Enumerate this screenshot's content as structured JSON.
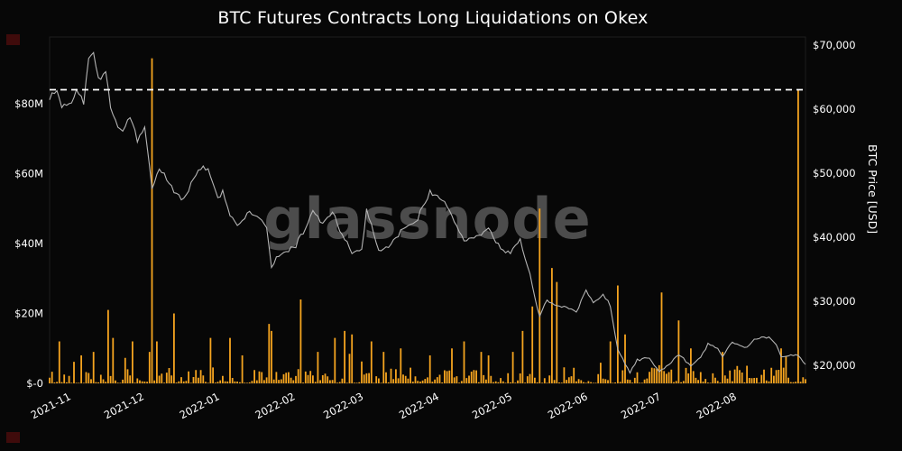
{
  "watermark": "glassnode",
  "chart_data": {
    "type": "mixed",
    "title": "BTC Futures Contracts Long Liquidations on Okex",
    "background": "#070707",
    "legend": "none",
    "grid": false,
    "x_range": [
      "2021-10-23",
      "2022-08-29"
    ],
    "series": [
      {
        "name": "Long Liquidations",
        "type": "bar",
        "axis": "left",
        "unit": "USD (millions)",
        "color": "#f5a41f"
      },
      {
        "name": "BTC Price",
        "type": "line",
        "axis": "right",
        "unit": "USD",
        "color": "#b4b4b4"
      }
    ],
    "left_axis": {
      "title": "",
      "range_m": [
        0,
        98
      ],
      "ticks": [
        {
          "label": "$80M",
          "value": 80
        },
        {
          "label": "$60M",
          "value": 60
        },
        {
          "label": "$40M",
          "value": 40
        },
        {
          "label": "$20M",
          "value": 20
        },
        {
          "label": "$-0",
          "value": 0
        }
      ]
    },
    "right_axis": {
      "title": "BTC Price [USD]",
      "range_usd": [
        17000,
        70500
      ],
      "ticks": [
        {
          "label": "$70,000",
          "value": 70000
        },
        {
          "label": "$60,000",
          "value": 60000
        },
        {
          "label": "$50,000",
          "value": 50000
        },
        {
          "label": "$40,000",
          "value": 40000
        },
        {
          "label": "$30,000",
          "value": 30000
        },
        {
          "label": "$20,000",
          "value": 20000
        }
      ]
    },
    "x_ticks": [
      {
        "label": "2021-11",
        "date": "2021-11-01"
      },
      {
        "label": "2021-12",
        "date": "2021-12-01"
      },
      {
        "label": "2022-01",
        "date": "2022-01-01"
      },
      {
        "label": "2022-02",
        "date": "2022-02-01"
      },
      {
        "label": "2022-03",
        "date": "2022-03-01"
      },
      {
        "label": "2022-04",
        "date": "2022-04-01"
      },
      {
        "label": "2022-05",
        "date": "2022-05-01"
      },
      {
        "label": "2022-06",
        "date": "2022-06-01"
      },
      {
        "label": "2022-07",
        "date": "2022-07-01"
      },
      {
        "label": "2022-08",
        "date": "2022-08-01"
      }
    ],
    "annotation_line": {
      "description": "latest value dashed marker",
      "value_m": 84,
      "style": "dashed",
      "color": "#ffffff"
    },
    "price_anchors": [
      [
        "2021-10-23",
        61500
      ],
      [
        "2021-10-26",
        62900
      ],
      [
        "2021-10-28",
        60300
      ],
      [
        "2021-11-01",
        61300
      ],
      [
        "2021-11-03",
        63100
      ],
      [
        "2021-11-06",
        61400
      ],
      [
        "2021-11-08",
        67600
      ],
      [
        "2021-11-10",
        68800
      ],
      [
        "2021-11-12",
        64900
      ],
      [
        "2021-11-15",
        65900
      ],
      [
        "2021-11-17",
        60300
      ],
      [
        "2021-11-19",
        58100
      ],
      [
        "2021-11-22",
        56300
      ],
      [
        "2021-11-25",
        59000
      ],
      [
        "2021-11-28",
        54700
      ],
      [
        "2021-12-01",
        57200
      ],
      [
        "2021-12-04",
        47500
      ],
      [
        "2021-12-07",
        50700
      ],
      [
        "2021-12-11",
        48300
      ],
      [
        "2021-12-14",
        46700
      ],
      [
        "2021-12-17",
        46100
      ],
      [
        "2021-12-21",
        48900
      ],
      [
        "2021-12-24",
        50800
      ],
      [
        "2021-12-27",
        50700
      ],
      [
        "2021-12-31",
        46200
      ],
      [
        "2022-01-02",
        47300
      ],
      [
        "2022-01-05",
        43400
      ],
      [
        "2022-01-08",
        41700
      ],
      [
        "2022-01-13",
        43900
      ],
      [
        "2022-01-17",
        43100
      ],
      [
        "2022-01-20",
        41700
      ],
      [
        "2022-01-22",
        35100
      ],
      [
        "2022-01-24",
        36700
      ],
      [
        "2022-01-28",
        37800
      ],
      [
        "2022-02-01",
        38700
      ],
      [
        "2022-02-05",
        41500
      ],
      [
        "2022-02-08",
        44000
      ],
      [
        "2022-02-12",
        42200
      ],
      [
        "2022-02-16",
        43900
      ],
      [
        "2022-02-20",
        40100
      ],
      [
        "2022-02-24",
        37700
      ],
      [
        "2022-02-28",
        37900
      ],
      [
        "2022-03-02",
        44400
      ],
      [
        "2022-03-07",
        38000
      ],
      [
        "2022-03-12",
        38800
      ],
      [
        "2022-03-16",
        41100
      ],
      [
        "2022-03-22",
        42400
      ],
      [
        "2022-03-28",
        47100
      ],
      [
        "2022-04-02",
        45900
      ],
      [
        "2022-04-06",
        43200
      ],
      [
        "2022-04-11",
        39500
      ],
      [
        "2022-04-14",
        40000
      ],
      [
        "2022-04-18",
        40400
      ],
      [
        "2022-04-21",
        41400
      ],
      [
        "2022-04-26",
        38100
      ],
      [
        "2022-04-30",
        37700
      ],
      [
        "2022-05-04",
        39700
      ],
      [
        "2022-05-08",
        34100
      ],
      [
        "2022-05-11",
        28900
      ],
      [
        "2022-05-12",
        27600
      ],
      [
        "2022-05-15",
        30100
      ],
      [
        "2022-05-19",
        29200
      ],
      [
        "2022-05-23",
        29100
      ],
      [
        "2022-05-27",
        28600
      ],
      [
        "2022-05-31",
        31700
      ],
      [
        "2022-06-03",
        29700
      ],
      [
        "2022-06-07",
        31200
      ],
      [
        "2022-06-10",
        29100
      ],
      [
        "2022-06-13",
        22500
      ],
      [
        "2022-06-15",
        21100
      ],
      [
        "2022-06-18",
        18900
      ],
      [
        "2022-06-21",
        20700
      ],
      [
        "2022-06-26",
        21200
      ],
      [
        "2022-06-30",
        19000
      ],
      [
        "2022-07-04",
        20200
      ],
      [
        "2022-07-08",
        21600
      ],
      [
        "2022-07-13",
        19900
      ],
      [
        "2022-07-17",
        21200
      ],
      [
        "2022-07-20",
        23400
      ],
      [
        "2022-07-24",
        22600
      ],
      [
        "2022-07-26",
        21300
      ],
      [
        "2022-07-30",
        23800
      ],
      [
        "2022-08-04",
        22800
      ],
      [
        "2022-08-08",
        23900
      ],
      [
        "2022-08-11",
        24500
      ],
      [
        "2022-08-14",
        24300
      ],
      [
        "2022-08-17",
        23300
      ],
      [
        "2022-08-19",
        21300
      ],
      [
        "2022-08-23",
        21500
      ],
      [
        "2022-08-26",
        21600
      ],
      [
        "2022-08-29",
        20100
      ]
    ],
    "bar_spikes_m": [
      [
        "2021-10-27",
        12
      ],
      [
        "2021-11-05",
        8
      ],
      [
        "2021-11-10",
        9
      ],
      [
        "2021-11-16",
        21
      ],
      [
        "2021-11-18",
        13
      ],
      [
        "2021-11-26",
        12
      ],
      [
        "2021-12-03",
        9
      ],
      [
        "2021-12-04",
        93
      ],
      [
        "2021-12-06",
        12
      ],
      [
        "2021-12-13",
        20
      ],
      [
        "2021-12-28",
        13
      ],
      [
        "2022-01-05",
        13
      ],
      [
        "2022-01-10",
        8
      ],
      [
        "2022-01-21",
        17
      ],
      [
        "2022-01-22",
        15
      ],
      [
        "2022-02-03",
        24
      ],
      [
        "2022-02-10",
        9
      ],
      [
        "2022-02-17",
        13
      ],
      [
        "2022-02-21",
        15
      ],
      [
        "2022-02-24",
        14
      ],
      [
        "2022-03-04",
        12
      ],
      [
        "2022-03-09",
        9
      ],
      [
        "2022-03-16",
        10
      ],
      [
        "2022-03-28",
        8
      ],
      [
        "2022-04-06",
        10
      ],
      [
        "2022-04-11",
        12
      ],
      [
        "2022-04-18",
        9
      ],
      [
        "2022-04-21",
        8
      ],
      [
        "2022-05-01",
        9
      ],
      [
        "2022-05-05",
        15
      ],
      [
        "2022-05-09",
        22
      ],
      [
        "2022-05-12",
        50
      ],
      [
        "2022-05-17",
        33
      ],
      [
        "2022-05-19",
        29
      ],
      [
        "2022-06-10",
        12
      ],
      [
        "2022-06-13",
        28
      ],
      [
        "2022-06-16",
        14
      ],
      [
        "2022-07-01",
        26
      ],
      [
        "2022-07-08",
        18
      ],
      [
        "2022-07-13",
        10
      ],
      [
        "2022-07-26",
        9
      ],
      [
        "2022-08-19",
        10
      ],
      [
        "2022-08-26",
        84
      ]
    ],
    "bar_baseline_max_m": 6
  }
}
